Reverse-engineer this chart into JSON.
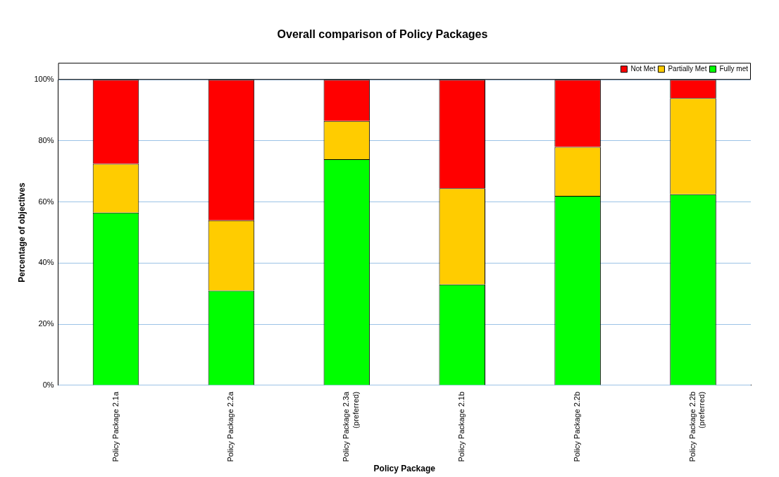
{
  "chart_data": {
    "type": "bar",
    "stacked": true,
    "title": "Overall comparison of Policy Packages",
    "xlabel": "Policy Package",
    "ylabel": "Percentage of objectives",
    "categories": [
      "Policy Package 2.1a",
      "Policy Package 2.2a",
      "Policy Package 2.3a\n(preferred)",
      "Policy Package 2.1b",
      "Policy Package 2.2b",
      "Policy Package 2.2b\n(preferred)"
    ],
    "series": [
      {
        "name": "Fully met",
        "color": "#00ff00",
        "values": [
          56.5,
          31,
          74,
          33,
          62,
          62.5
        ]
      },
      {
        "name": "Partially Met",
        "color": "#ffcc00",
        "values": [
          16,
          23,
          12.5,
          31.5,
          16,
          31.5
        ]
      },
      {
        "name": "Not Met",
        "color": "#ff0000",
        "values": [
          27.5,
          46,
          13.5,
          35.5,
          22,
          6
        ]
      }
    ],
    "ylim": [
      0,
      100
    ],
    "yticks": [
      {
        "value": 0,
        "label": "0%"
      },
      {
        "value": 20,
        "label": "20%"
      },
      {
        "value": 40,
        "label": "40%"
      },
      {
        "value": 60,
        "label": "60%"
      },
      {
        "value": 80,
        "label": "80%"
      },
      {
        "value": 100,
        "label": "100%"
      }
    ],
    "grid": "y",
    "legend": "top right"
  }
}
